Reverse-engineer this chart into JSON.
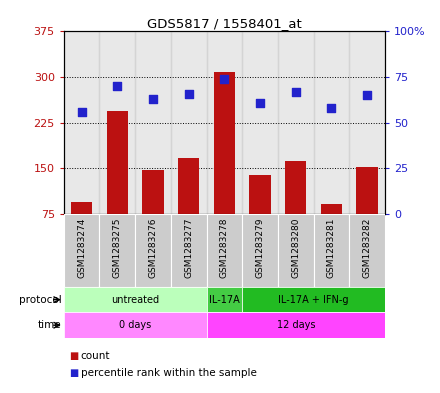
{
  "title": "GDS5817 / 1558401_at",
  "samples": [
    "GSM1283274",
    "GSM1283275",
    "GSM1283276",
    "GSM1283277",
    "GSM1283278",
    "GSM1283279",
    "GSM1283280",
    "GSM1283281",
    "GSM1283282"
  ],
  "counts": [
    95,
    245,
    148,
    168,
    308,
    140,
    163,
    92,
    152
  ],
  "percentiles": [
    56,
    70,
    63,
    66,
    74,
    61,
    67,
    58,
    65
  ],
  "ylim_left": [
    75,
    375
  ],
  "yticks_left": [
    75,
    150,
    225,
    300,
    375
  ],
  "ylim_right": [
    0,
    100
  ],
  "yticks_right": [
    0,
    25,
    50,
    75,
    100
  ],
  "bar_color": "#bb1111",
  "dot_color": "#2222cc",
  "bg_color": "#ffffff",
  "cell_color": "#cccccc",
  "protocol_data": [
    {
      "label": "untreated",
      "start": 0,
      "end": 3,
      "color": "#bbffbb"
    },
    {
      "label": "IL-17A",
      "start": 4,
      "end": 4,
      "color": "#44cc44"
    },
    {
      "label": "IL-17A + IFN-g",
      "start": 5,
      "end": 8,
      "color": "#22bb22"
    }
  ],
  "time_data": [
    {
      "label": "0 days",
      "start": 0,
      "end": 3,
      "color": "#ff88ff"
    },
    {
      "label": "12 days",
      "start": 4,
      "end": 8,
      "color": "#ff44ff"
    }
  ],
  "legend_count_label": "count",
  "legend_pct_label": "percentile rank within the sample"
}
